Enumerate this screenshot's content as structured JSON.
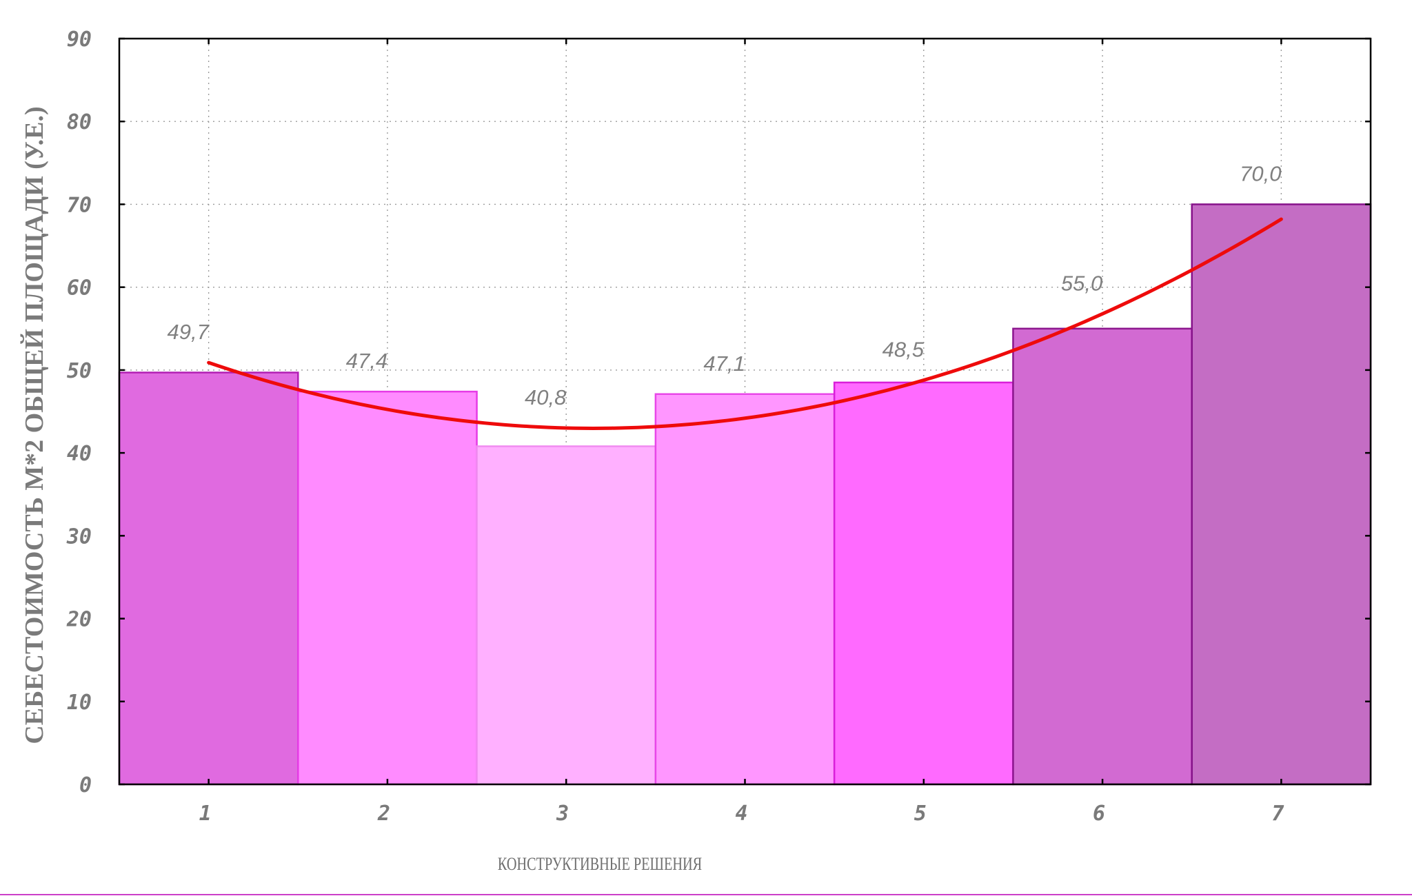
{
  "chart_data": {
    "type": "bar",
    "categories": [
      "1",
      "2",
      "3",
      "4",
      "5",
      "6",
      "7"
    ],
    "values": [
      49.7,
      47.4,
      40.8,
      47.1,
      48.5,
      55.0,
      70.0
    ],
    "data_labels": [
      "49,7",
      "47,4",
      "40,8",
      "47,1",
      "48,5",
      "55,0",
      "70,0"
    ],
    "bar_fill_colors": [
      "#e06ae0",
      "#ff8bff",
      "#ffb0ff",
      "#ff96ff",
      "#ff6aff",
      "#d26ad2",
      "#c46dc4"
    ],
    "bar_stroke_colors": [
      "#b21fb4",
      "#e63ce6",
      "#f08cf0",
      "#e846e8",
      "#d91fd9",
      "#8c168e",
      "#86128a"
    ],
    "trend_color": "#ee0b0b",
    "trend": {
      "type": "quadratic",
      "points": [
        [
          1,
          50.6
        ],
        [
          2,
          45.5
        ],
        [
          3,
          43.3
        ],
        [
          4,
          44.3
        ],
        [
          5,
          48.5
        ],
        [
          6,
          56.3
        ],
        [
          7,
          68.6
        ]
      ]
    },
    "xlabel": "КОНСТРУКТИВНЫЕ РЕШЕНИЯ",
    "ylabel": "СЕБЕСТОИМОСТЬ М*2 ОБЩЕЙ ПЛОЩАДИ (У.Е.)",
    "ylim": [
      0,
      90
    ],
    "yticks": [
      "0",
      "10",
      "20",
      "30",
      "40",
      "50",
      "60",
      "70",
      "80",
      "90"
    ],
    "grid": true
  }
}
